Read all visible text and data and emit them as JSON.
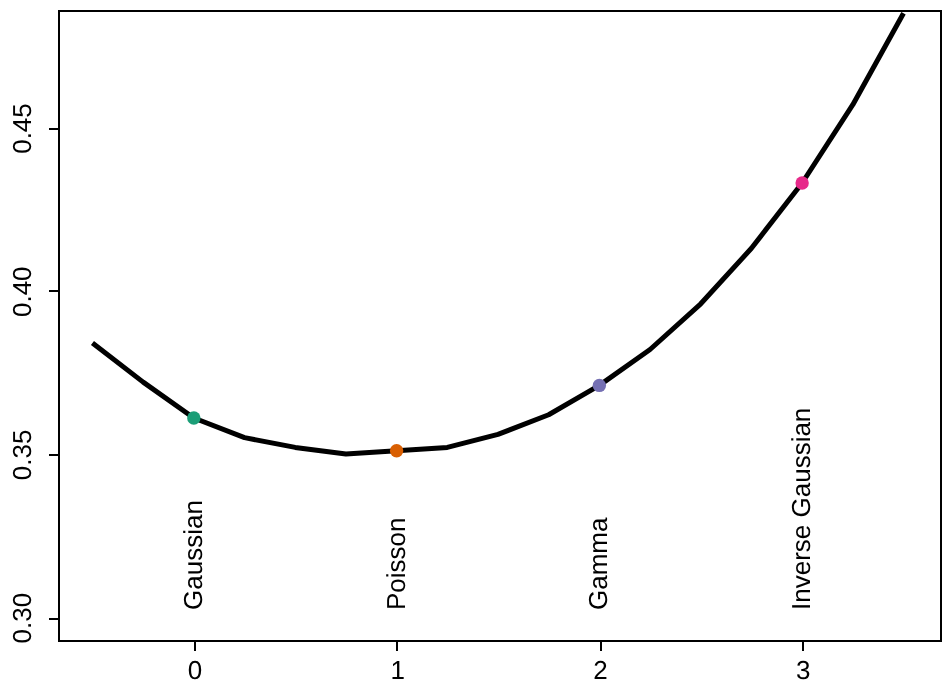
{
  "chart_data": {
    "type": "line",
    "series": [
      {
        "color": "#000000",
        "marker": "none",
        "line_style": "solid",
        "x": [
          -0.5,
          -0.25,
          0,
          0.25,
          0.5,
          0.75,
          1,
          1.25,
          1.5,
          1.75,
          2,
          2.25,
          2.5,
          2.75,
          3,
          3.25,
          3.5
        ],
        "values": [
          0.384,
          0.372,
          0.361,
          0.355,
          0.352,
          0.35,
          0.351,
          0.352,
          0.356,
          0.362,
          0.371,
          0.382,
          0.396,
          0.413,
          0.433,
          0.457,
          0.485
        ]
      },
      {
        "type": "scatter",
        "marker": "circle",
        "x": [
          0,
          1,
          2,
          3
        ],
        "values": [
          0.361,
          0.351,
          0.371,
          0.433
        ],
        "colors": [
          "#1b9e77",
          "#d95f02",
          "#7570b3",
          "#e7298a"
        ]
      }
    ],
    "annotations": [
      "Gaussian",
      "Poisson",
      "Gamma",
      "Inverse Gaussian"
    ],
    "xlim": [
      -0.67,
      3.68
    ],
    "xticks": [
      0,
      1,
      2,
      3
    ],
    "ylim": [
      0.293,
      0.486
    ],
    "yticks": [
      {
        "value": 0.3,
        "label": "0.30"
      },
      0.35,
      {
        "value": 0.4,
        "label": "0.40"
      },
      0.45
    ],
    "grid": false,
    "legend": false
  }
}
